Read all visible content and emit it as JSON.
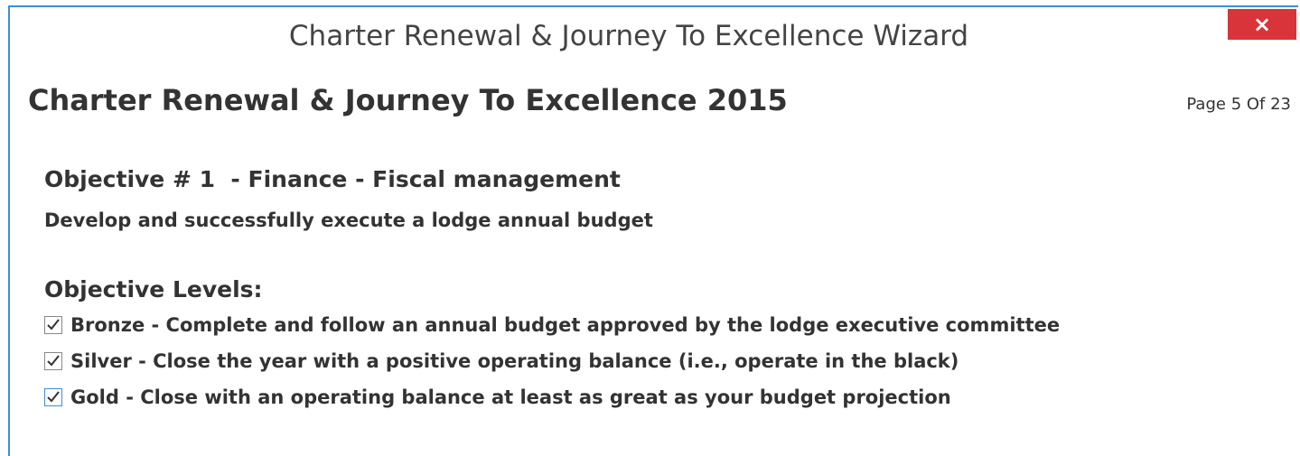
{
  "dialog": {
    "title": "Charter Renewal & Journey To Excellence Wizard",
    "close": "×"
  },
  "header": {
    "title": "Charter Renewal & Journey To Excellence 2015",
    "page": "Page 5 Of 23"
  },
  "objective": {
    "heading": "Objective # 1  - Finance - Fiscal management",
    "description": "Develop and successfully execute a lodge annual budget"
  },
  "levels": {
    "heading": "Objective Levels:",
    "items": [
      {
        "label": "Bronze - Complete and follow an annual budget approved by the lodge executive committee",
        "checked": true
      },
      {
        "label": "Silver - Close the year with a positive operating balance (i.e., operate in the black)",
        "checked": true
      },
      {
        "label": "Gold - Close with an operating balance at least as great as your budget projection",
        "checked": true
      }
    ]
  }
}
